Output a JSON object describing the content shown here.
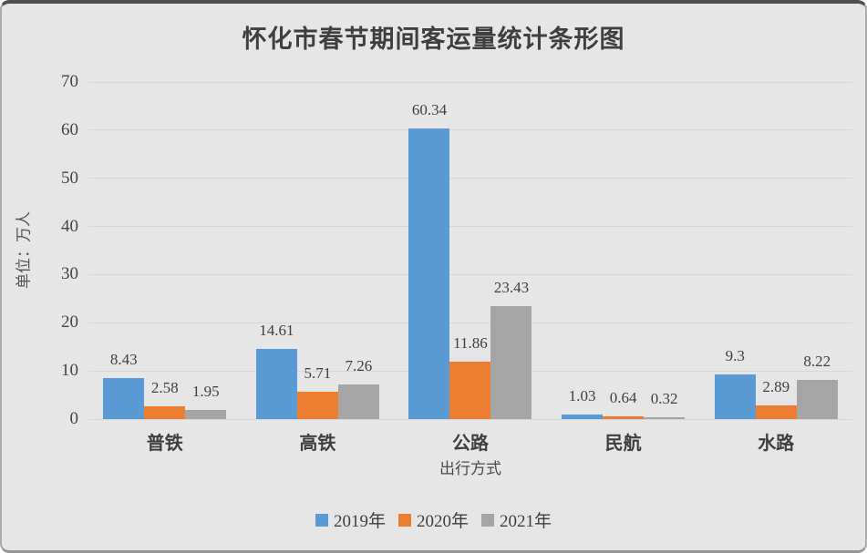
{
  "chart_data": {
    "type": "bar",
    "title": "怀化市春节期间客运量统计条形图",
    "xlabel": "出行方式",
    "ylabel": "单位：万人",
    "categories": [
      "普铁",
      "高铁",
      "公路",
      "民航",
      "水路"
    ],
    "series": [
      {
        "name": "2019年",
        "color": "#5b9bd5",
        "values": [
          8.43,
          14.61,
          60.34,
          1.03,
          9.3
        ]
      },
      {
        "name": "2020年",
        "color": "#ed7d31",
        "values": [
          2.58,
          5.71,
          11.86,
          0.64,
          2.89
        ]
      },
      {
        "name": "2021年",
        "color": "#a5a5a5",
        "values": [
          1.95,
          7.26,
          23.43,
          0.32,
          8.22
        ]
      }
    ],
    "ylim": [
      0,
      70
    ],
    "yticks": [
      0,
      10,
      20,
      30,
      40,
      50,
      60,
      70
    ],
    "grid": true,
    "data_labels": true,
    "legend_position": "bottom",
    "colors": {
      "background": "#e6e6e6",
      "gridline": "#d7d7d7",
      "text": "#3f3f3f"
    }
  }
}
